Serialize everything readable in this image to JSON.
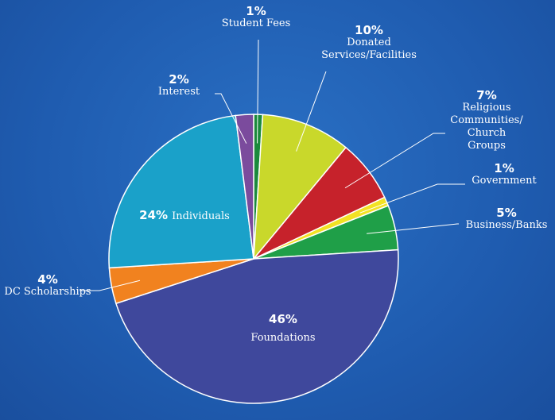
{
  "chart_data": {
    "type": "pie",
    "categories": [
      "Student Fees",
      "Donated\nServices/Facilities",
      "Religious Communities/\nChurch Groups",
      "Government",
      "Business/Banks",
      "Foundations",
      "DC Scholarships",
      "Individuals",
      "Interest"
    ],
    "values": [
      1,
      10,
      7,
      1,
      5,
      46,
      4,
      24,
      2
    ],
    "value_labels": [
      "1%",
      "10%",
      "7%",
      "1%",
      "5%",
      "46%",
      "4%",
      "24%",
      "2%"
    ],
    "colors": [
      "#1b8a3c",
      "#c9d82b",
      "#c6222b",
      "#f2e224",
      "#1f9f48",
      "#3f489c",
      "#f1821f",
      "#1aa1c9",
      "#7b4b9d"
    ]
  }
}
